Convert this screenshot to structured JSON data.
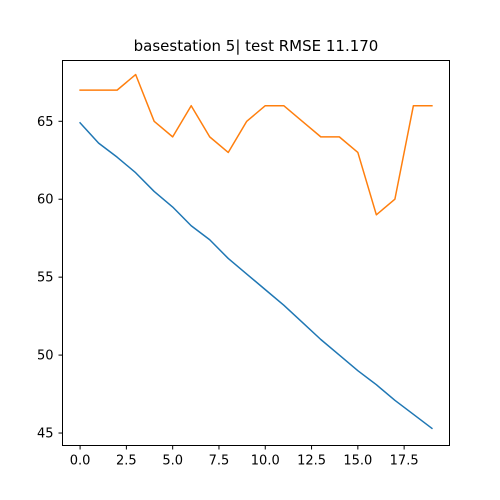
{
  "chart_data": {
    "type": "line",
    "title": "basestation 5| test RMSE 11.170",
    "xlabel": "",
    "ylabel": "",
    "xlim": [
      -0.95,
      19.95
    ],
    "ylim": [
      44.2,
      68.9
    ],
    "xticks": [
      0.0,
      2.5,
      5.0,
      7.5,
      10.0,
      12.5,
      15.0,
      17.5
    ],
    "xtick_labels": [
      "0.0",
      "2.5",
      "5.0",
      "7.5",
      "10.0",
      "12.5",
      "15.0",
      "17.5"
    ],
    "yticks": [
      45,
      50,
      55,
      60,
      65
    ],
    "ytick_labels": [
      "45",
      "50",
      "55",
      "60",
      "65"
    ],
    "grid": false,
    "x": [
      0,
      1,
      2,
      3,
      4,
      5,
      6,
      7,
      8,
      9,
      10,
      11,
      12,
      13,
      14,
      15,
      16,
      17,
      18,
      19
    ],
    "series": [
      {
        "color": "#1f77b4",
        "values": [
          64.9,
          63.6,
          62.7,
          61.7,
          60.5,
          59.5,
          58.3,
          57.4,
          56.2,
          55.2,
          54.2,
          53.2,
          52.1,
          51.0,
          50.0,
          49.0,
          48.1,
          47.1,
          46.2,
          45.3
        ]
      },
      {
        "color": "#ff7f0e",
        "values": [
          67,
          67,
          67,
          68,
          65,
          64,
          66,
          64,
          63,
          65,
          66,
          66,
          65,
          64,
          64,
          63,
          59,
          60,
          66,
          66
        ]
      }
    ]
  }
}
